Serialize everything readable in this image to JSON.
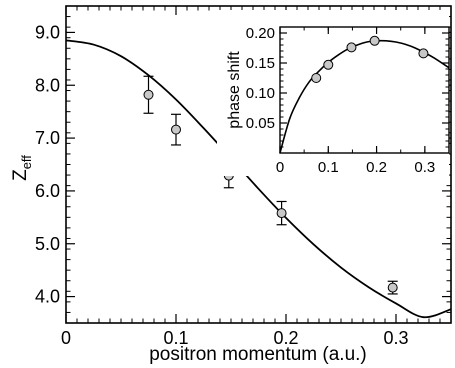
{
  "chart_data": [
    {
      "type": "scatter",
      "panel": "main",
      "xlabel": "positron momentum (a.u.)",
      "ylabel": "Z",
      "ylabel_subscript": "eff",
      "xlim": [
        0,
        0.35
      ],
      "ylim": [
        3.5,
        9.5
      ],
      "x_ticks": [
        0,
        0.1,
        0.2,
        0.3
      ],
      "x_tick_labels": [
        "0",
        "0.1",
        "0.2",
        "0.3"
      ],
      "y_ticks": [
        4,
        5,
        6,
        7,
        8,
        9
      ],
      "y_tick_labels": [
        "4.0",
        "5.0",
        "6.0",
        "7.0",
        "8.0",
        "9.0"
      ],
      "grid": false,
      "series": [
        {
          "kind": "points_with_error_bars",
          "x": [
            0.075,
            0.1,
            0.148,
            0.196,
            0.297
          ],
          "y": [
            7.82,
            7.16,
            6.29,
            5.58,
            4.17
          ],
          "yerr": [
            0.35,
            0.29,
            0.23,
            0.22,
            0.12
          ]
        },
        {
          "kind": "curve",
          "x": [
            0,
            0.025,
            0.05,
            0.075,
            0.1,
            0.125,
            0.15,
            0.175,
            0.2,
            0.225,
            0.25,
            0.275,
            0.3,
            0.325,
            0.35
          ],
          "y": [
            8.85,
            8.77,
            8.55,
            8.19,
            7.73,
            7.19,
            6.62,
            6.04,
            5.49,
            4.99,
            4.55,
            4.18,
            3.87,
            3.61,
            3.76
          ]
        }
      ]
    },
    {
      "type": "scatter",
      "panel": "inset",
      "xlabel": "",
      "ylabel": "phase shift",
      "xlim": [
        0,
        0.35
      ],
      "ylim": [
        0,
        0.21
      ],
      "x_ticks": [
        0,
        0.1,
        0.2,
        0.3
      ],
      "x_tick_labels": [
        "0",
        "0.1",
        "0.2",
        "0.3"
      ],
      "y_ticks": [
        0.05,
        0.1,
        0.15,
        0.2
      ],
      "y_tick_labels": [
        "0.05",
        "0.10",
        "0.15",
        "0.20"
      ],
      "grid": false,
      "series": [
        {
          "kind": "points",
          "x": [
            0.075,
            0.1,
            0.148,
            0.196,
            0.297
          ],
          "y": [
            0.125,
            0.147,
            0.176,
            0.187,
            0.166
          ]
        },
        {
          "kind": "curve",
          "x": [
            0,
            0.02,
            0.04,
            0.06,
            0.08,
            0.1,
            0.12,
            0.14,
            0.16,
            0.18,
            0.2,
            0.22,
            0.24,
            0.26,
            0.28,
            0.3,
            0.32,
            0.35
          ],
          "y": [
            0,
            0.057,
            0.092,
            0.118,
            0.136,
            0.151,
            0.163,
            0.173,
            0.18,
            0.185,
            0.187,
            0.187,
            0.185,
            0.181,
            0.175,
            0.167,
            0.158,
            0.142
          ]
        }
      ]
    }
  ]
}
